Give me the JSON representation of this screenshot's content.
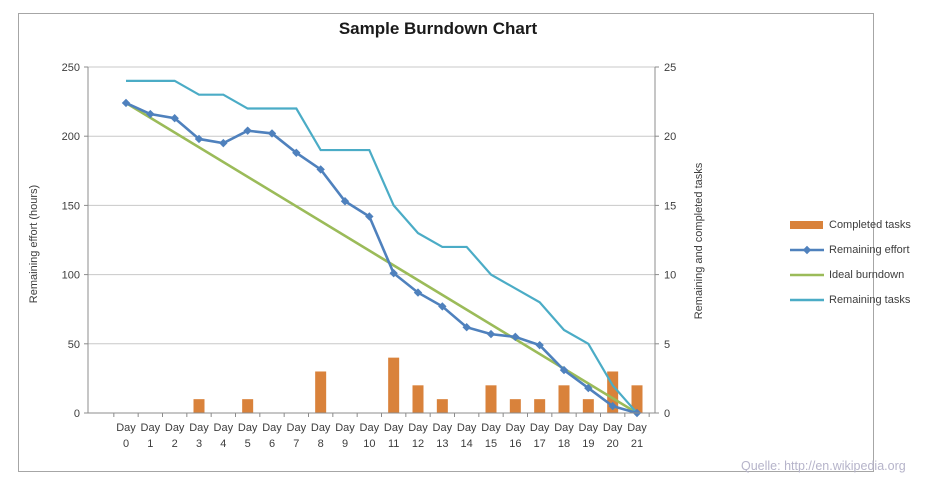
{
  "title": "Sample Burndown Chart",
  "source_note": "Quelle: http://en.wikipedia.org",
  "legend": [
    {
      "label": "Completed tasks",
      "swatch": "bar",
      "color": "#d9823b"
    },
    {
      "label": "Remaining effort",
      "swatch": "line-marker",
      "color": "#4f81bd"
    },
    {
      "label": "Ideal burndown",
      "swatch": "line",
      "color": "#9bbb59"
    },
    {
      "label": "Remaining tasks",
      "swatch": "line",
      "color": "#4bacc6"
    }
  ],
  "chart_data": {
    "type": "combo bar+line",
    "title": "Sample Burndown Chart",
    "categories": [
      "Day 0",
      "Day 1",
      "Day 2",
      "Day 3",
      "Day 4",
      "Day 5",
      "Day 6",
      "Day 7",
      "Day 8",
      "Day 9",
      "Day 10",
      "Day 11",
      "Day 12",
      "Day 13",
      "Day 14",
      "Day 15",
      "Day 16",
      "Day 17",
      "Day 18",
      "Day 19",
      "Day 20",
      "Day 21"
    ],
    "series": [
      {
        "name": "Completed tasks",
        "type": "bar",
        "axis": "right",
        "color": "#d9823b",
        "values": [
          0,
          0,
          0,
          1,
          0,
          1,
          0,
          0,
          3,
          0,
          0,
          4,
          2,
          1,
          0,
          2,
          1,
          1,
          2,
          1,
          3,
          2
        ]
      },
      {
        "name": "Remaining effort",
        "type": "line",
        "axis": "left",
        "marker": "diamond",
        "color": "#4f81bd",
        "values": [
          224,
          216,
          213,
          198,
          195,
          204,
          202,
          188,
          176,
          153,
          142,
          101,
          87,
          77,
          62,
          57,
          55,
          49,
          31,
          18,
          5,
          0
        ]
      },
      {
        "name": "Ideal burndown",
        "type": "line",
        "axis": "left",
        "color": "#9bbb59",
        "x_endpoints": [
          0,
          21
        ],
        "value_endpoints": [
          224,
          0
        ]
      },
      {
        "name": "Remaining tasks",
        "type": "line",
        "axis": "right",
        "color": "#4bacc6",
        "values": [
          24,
          24,
          24,
          23,
          23,
          22,
          22,
          22,
          19,
          19,
          19,
          15,
          13,
          12,
          12,
          10,
          9,
          8,
          6,
          5,
          2,
          0
        ]
      }
    ],
    "left_axis": {
      "label": "Remaining effort (hours)",
      "min": 0,
      "max": 250,
      "ticks": [
        0,
        50,
        100,
        150,
        200,
        250
      ]
    },
    "right_axis": {
      "label": "Remaining and completed tasks",
      "min": 0,
      "max": 25,
      "ticks": [
        0,
        5,
        10,
        15,
        20,
        25
      ]
    },
    "grid": true,
    "legend_position": "right"
  },
  "colors": {
    "bar": "#d9823b",
    "effort_line": "#4f81bd",
    "ideal_line": "#9bbb59",
    "tasks_line": "#4bacc6",
    "gridline": "#c8c8c8",
    "axis_line": "#8c8c8c",
    "tick_label": "#3d3d3d",
    "frame_border": "#a6a6a6",
    "source_text": "#b6b4ca"
  }
}
